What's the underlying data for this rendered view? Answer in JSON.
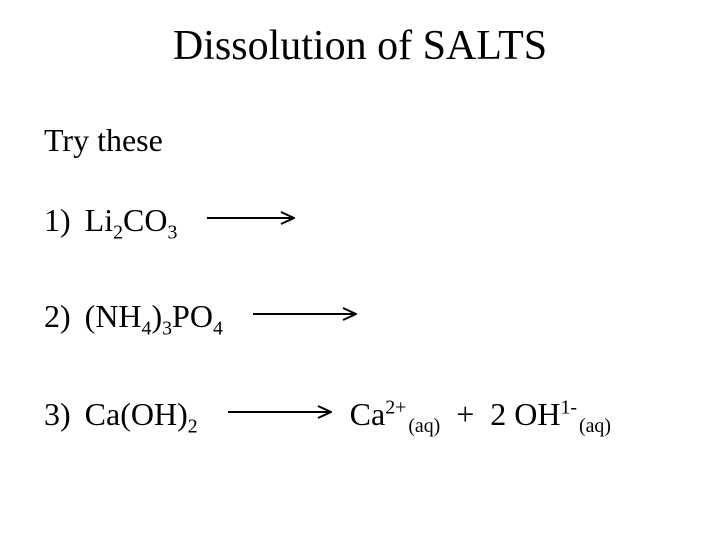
{
  "title": "Dissolution of SALTS",
  "subtitle": "Try these",
  "colors": {
    "text": "#000000",
    "background": "#ffffff",
    "arrow": "#000000"
  },
  "typography": {
    "family": "Times New Roman",
    "title_fontsize": 42,
    "body_fontsize": 32
  },
  "items": [
    {
      "number": "1)",
      "formula_html": "Li<sub>2</sub>CO<sub>3</sub>",
      "arrow_width": 88,
      "product_html": ""
    },
    {
      "number": "2)",
      "formula_html": "(NH<sub>4</sub>)<sub>3</sub>PO<sub>4</sub>",
      "arrow_width": 104,
      "product_html": ""
    },
    {
      "number": "3)",
      "formula_html": "Ca(OH)<sub>2</sub>",
      "arrow_width": 104,
      "product_html": "Ca<sup>2+</sup><span class=\"state\">(aq)</span> &nbsp;+&nbsp; 2 OH<sup>1-</sup><span class=\"state\">(aq)</span>"
    }
  ]
}
